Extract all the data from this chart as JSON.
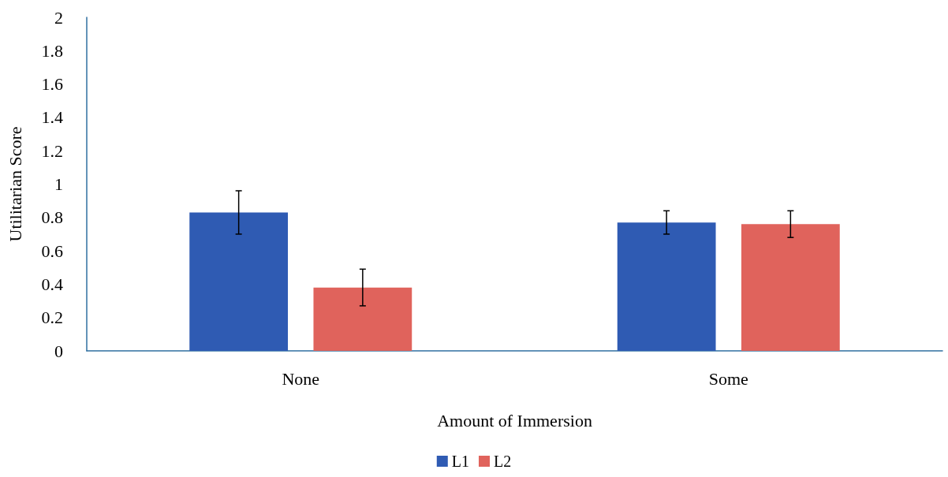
{
  "chart_data": {
    "type": "bar",
    "xlabel": "Amount of Immersion",
    "ylabel": "Utilitarian Score",
    "categories": [
      "None",
      "Some"
    ],
    "series": [
      {
        "name": "L1",
        "color": "#2f5bb3",
        "values": [
          0.83,
          0.77
        ],
        "errors": [
          0.13,
          0.07
        ]
      },
      {
        "name": "L2",
        "color": "#e0635c",
        "values": [
          0.38,
          0.76
        ],
        "errors": [
          0.11,
          0.08
        ]
      }
    ],
    "ylim": [
      0,
      2
    ],
    "yticks": [
      0,
      0.2,
      0.4,
      0.6,
      0.8,
      1,
      1.2,
      1.4,
      1.6,
      1.8,
      2
    ],
    "grid": false,
    "legend": "bottom"
  }
}
